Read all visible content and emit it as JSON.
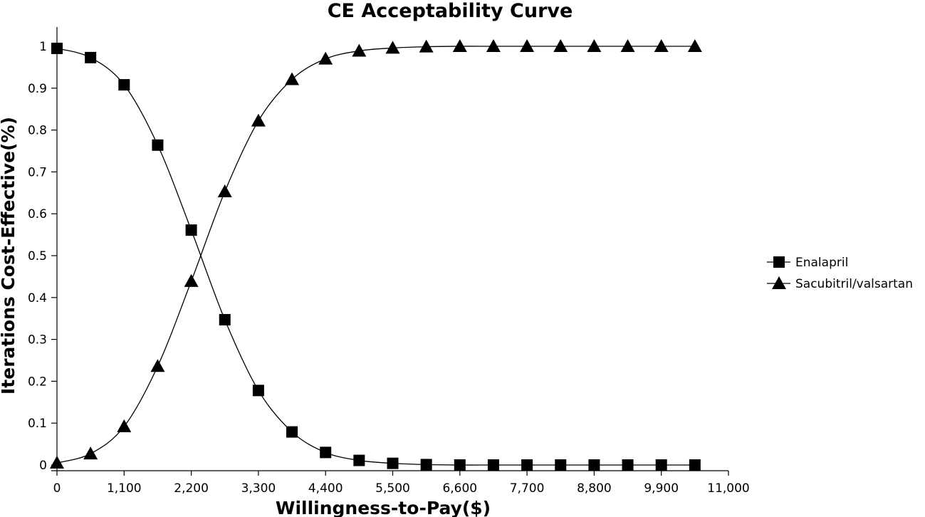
{
  "chart_data": {
    "type": "line",
    "title": "CE Acceptability Curve",
    "xlabel": "Willingness-to-Pay($)",
    "ylabel": "Iterations Cost-Effective(%)",
    "xlim": [
      0,
      11000
    ],
    "ylim": [
      0,
      1
    ],
    "x_ticks": [
      0,
      1100,
      2200,
      3300,
      4400,
      5500,
      6600,
      7700,
      8800,
      9900,
      11000
    ],
    "x_tick_labels": [
      "0",
      "1,100",
      "2,200",
      "3,300",
      "4,400",
      "5,500",
      "6,600",
      "7,700",
      "8,800",
      "9,900",
      "11,000"
    ],
    "y_ticks": [
      0,
      0.1,
      0.2,
      0.3,
      0.4,
      0.5,
      0.6,
      0.7,
      0.8,
      0.9,
      1
    ],
    "y_tick_labels": [
      "0",
      "0.1",
      "0.2",
      "0.3",
      "0.4",
      "0.5",
      "0.6",
      "0.7",
      "0.8",
      "0.9",
      "1"
    ],
    "grid": false,
    "legend_position": "right",
    "x": [
      0,
      550,
      1100,
      1650,
      2200,
      2750,
      3300,
      3850,
      4400,
      4950,
      5500,
      6050,
      6600,
      7150,
      7700,
      8250,
      8800,
      9350,
      9900,
      10450
    ],
    "series": [
      {
        "name": "Enalapril",
        "marker": "square",
        "color": "#000000",
        "values": [
          0.995,
          0.973,
          0.908,
          0.764,
          0.561,
          0.347,
          0.178,
          0.079,
          0.03,
          0.011,
          0.004,
          0.001,
          0.0,
          0.0,
          0.0,
          0.0,
          0.0,
          0.0,
          0.0,
          0.0
        ]
      },
      {
        "name": "Sacubitril/valsartan",
        "marker": "triangle",
        "color": "#000000",
        "values": [
          0.005,
          0.027,
          0.092,
          0.236,
          0.439,
          0.653,
          0.822,
          0.921,
          0.97,
          0.989,
          0.996,
          0.999,
          1.0,
          1.0,
          1.0,
          1.0,
          1.0,
          1.0,
          1.0,
          1.0
        ]
      }
    ]
  }
}
